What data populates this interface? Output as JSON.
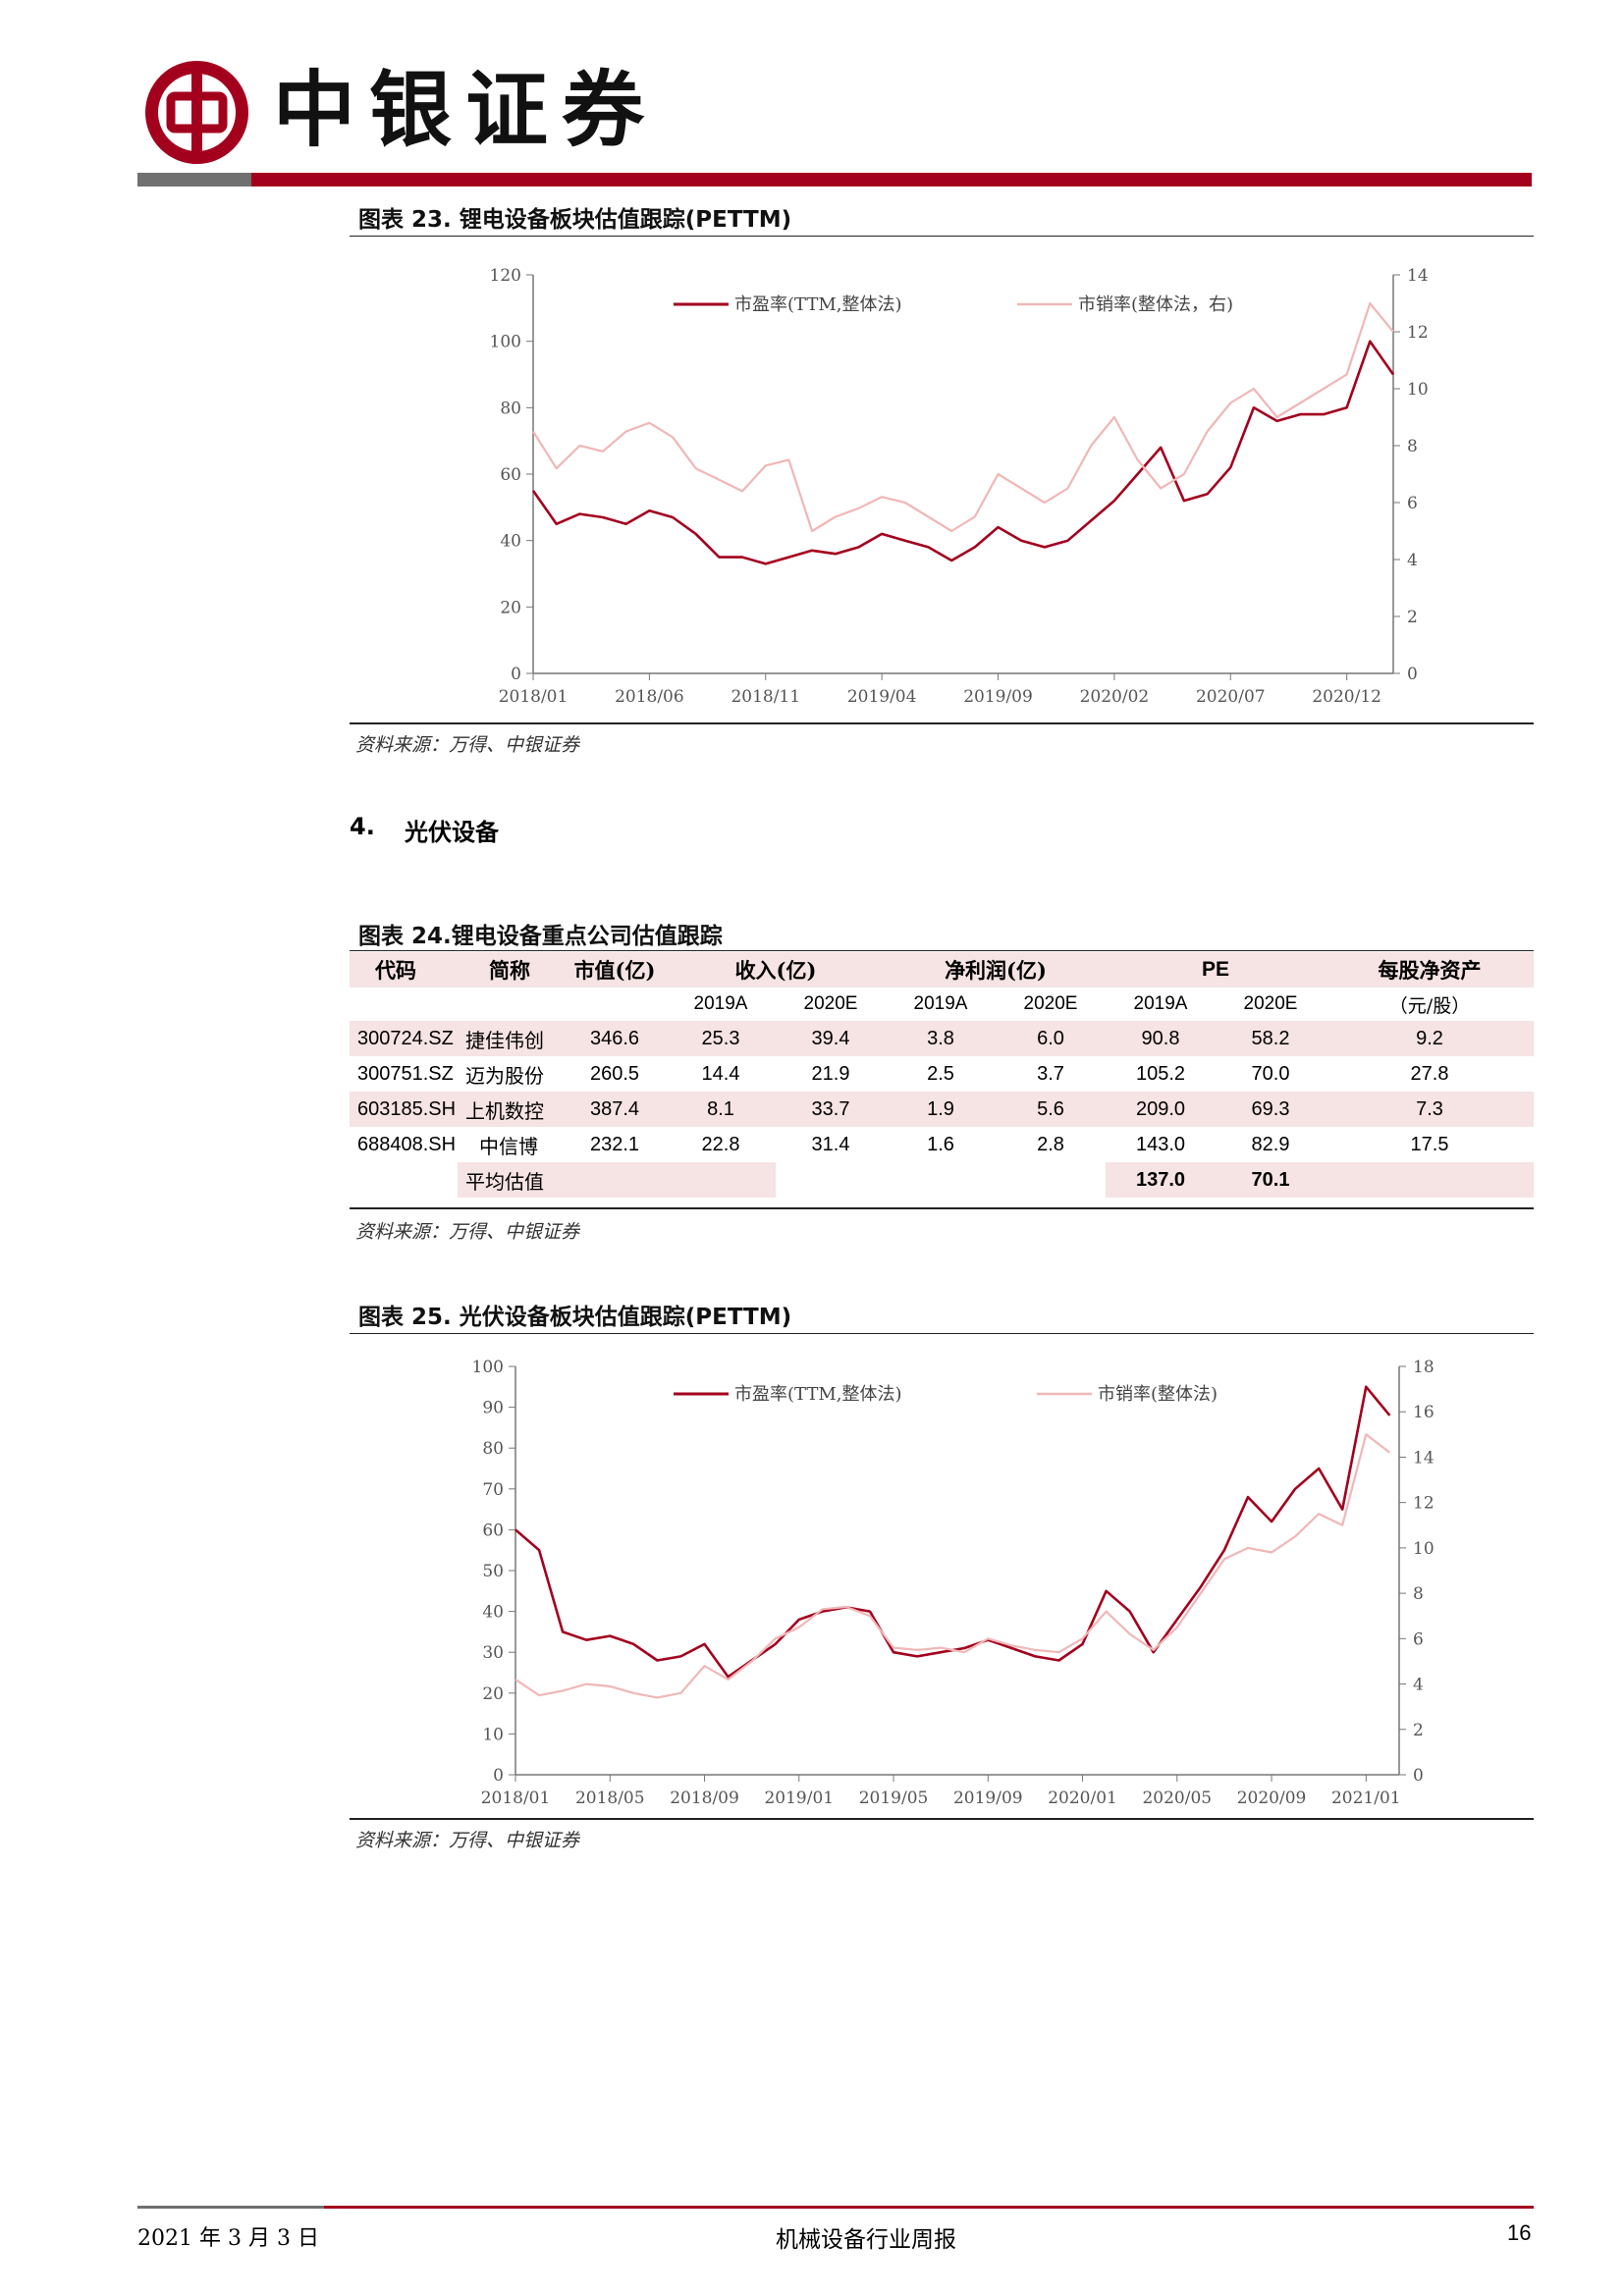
{
  "header": {
    "brand": "中银证券",
    "colors": {
      "brand_red": "#a3001e",
      "grey": "#707070"
    }
  },
  "figure23": {
    "title": "图表 23. 锂电设备板块估值跟踪(PETTM)",
    "source": "资料来源：万得、中银证券",
    "chart_data": {
      "type": "line",
      "x_ticks": [
        "2018/01",
        "2018/06",
        "2018/11",
        "2019/04",
        "2019/09",
        "2020/02",
        "2020/07",
        "2020/12"
      ],
      "y_left_ticks": [
        "0",
        "20",
        "40",
        "60",
        "80",
        "100",
        "120"
      ],
      "y_right_ticks": [
        "0",
        "2",
        "4",
        "6",
        "8",
        "10",
        "12",
        "14"
      ],
      "ylim_left": [
        0,
        120
      ],
      "ylim_right": [
        0,
        14
      ],
      "series": [
        {
          "name": "市盈率(TTM,整体法)",
          "axis": "left",
          "color": "#a3001e",
          "x": [
            "2018/01",
            "2018/02",
            "2018/03",
            "2018/04",
            "2018/05",
            "2018/06",
            "2018/07",
            "2018/08",
            "2018/09",
            "2018/10",
            "2018/11",
            "2018/12",
            "2019/01",
            "2019/02",
            "2019/03",
            "2019/04",
            "2019/05",
            "2019/06",
            "2019/07",
            "2019/08",
            "2019/09",
            "2019/10",
            "2019/11",
            "2019/12",
            "2020/01",
            "2020/02",
            "2020/03",
            "2020/04",
            "2020/05",
            "2020/06",
            "2020/07",
            "2020/08",
            "2020/09",
            "2020/10",
            "2020/11",
            "2020/12",
            "2021/01",
            "2021/02"
          ],
          "values": [
            55,
            45,
            48,
            47,
            45,
            49,
            47,
            42,
            35,
            35,
            33,
            35,
            37,
            36,
            38,
            42,
            40,
            38,
            34,
            38,
            44,
            40,
            38,
            40,
            46,
            52,
            60,
            68,
            52,
            54,
            62,
            80,
            76,
            78,
            78,
            80,
            100,
            90
          ]
        },
        {
          "name": "市销率(整体法，右)",
          "axis": "right",
          "color": "#f0b7b7",
          "x": [
            "2018/01",
            "2018/02",
            "2018/03",
            "2018/04",
            "2018/05",
            "2018/06",
            "2018/07",
            "2018/08",
            "2018/09",
            "2018/10",
            "2018/11",
            "2018/12",
            "2019/01",
            "2019/02",
            "2019/03",
            "2019/04",
            "2019/05",
            "2019/06",
            "2019/07",
            "2019/08",
            "2019/09",
            "2019/10",
            "2019/11",
            "2019/12",
            "2020/01",
            "2020/02",
            "2020/03",
            "2020/04",
            "2020/05",
            "2020/06",
            "2020/07",
            "2020/08",
            "2020/09",
            "2020/10",
            "2020/11",
            "2020/12",
            "2021/01",
            "2021/02"
          ],
          "values": [
            8.5,
            7.2,
            8.0,
            7.8,
            8.5,
            8.8,
            8.3,
            7.2,
            6.8,
            6.4,
            7.3,
            7.5,
            5.0,
            5.5,
            5.8,
            6.2,
            6.0,
            5.5,
            5.0,
            5.5,
            7.0,
            6.5,
            6.0,
            6.5,
            8.0,
            9.0,
            7.5,
            6.5,
            7.0,
            8.5,
            9.5,
            10.0,
            9.0,
            9.5,
            10.0,
            10.5,
            13.0,
            12.0
          ]
        }
      ]
    }
  },
  "section4": {
    "number": "4.",
    "title": "光伏设备"
  },
  "figure24": {
    "title": "图表 24.锂电设备重点公司估值跟踪",
    "source": "资料来源：万得、中银证券",
    "table": {
      "headers": {
        "code": "代码",
        "name": "简称",
        "mcap": "市值(亿)",
        "revenue": "收入(亿)",
        "profit": "净利润(亿)",
        "pe": "PE",
        "bvps": "每股净资产"
      },
      "sub_headers": {
        "rev_a": "2019A",
        "rev_e": "2020E",
        "np_a": "2019A",
        "np_e": "2020E",
        "pe_a": "2019A",
        "pe_e": "2020E",
        "bvps_unit": "（元/股）"
      },
      "rows": [
        {
          "code": "300724.SZ",
          "name": "捷佳伟创",
          "mcap": "346.6",
          "rev_a": "25.3",
          "rev_e": "39.4",
          "np_a": "3.8",
          "np_e": "6.0",
          "pe_a": "90.8",
          "pe_e": "58.2",
          "bvps": "9.2"
        },
        {
          "code": "300751.SZ",
          "name": "迈为股份",
          "mcap": "260.5",
          "rev_a": "14.4",
          "rev_e": "21.9",
          "np_a": "2.5",
          "np_e": "3.7",
          "pe_a": "105.2",
          "pe_e": "70.0",
          "bvps": "27.8"
        },
        {
          "code": "603185.SH",
          "name": "上机数控",
          "mcap": "387.4",
          "rev_a": "8.1",
          "rev_e": "33.7",
          "np_a": "1.9",
          "np_e": "5.6",
          "pe_a": "209.0",
          "pe_e": "69.3",
          "bvps": "7.3"
        },
        {
          "code": "688408.SH",
          "name": "中信博",
          "mcap": "232.1",
          "rev_a": "22.8",
          "rev_e": "31.4",
          "np_a": "1.6",
          "np_e": "2.8",
          "pe_a": "143.0",
          "pe_e": "82.9",
          "bvps": "17.5"
        }
      ],
      "average": {
        "name": "平均估值",
        "pe_a": "137.0",
        "pe_e": "70.1"
      },
      "tint_color": "#f6e3e3"
    }
  },
  "figure25": {
    "title": "图表 25. 光伏设备板块估值跟踪(PETTM)",
    "source": "资料来源：万得、中银证券",
    "chart_data": {
      "type": "line",
      "x_ticks": [
        "2018/01",
        "2018/05",
        "2018/09",
        "2019/01",
        "2019/05",
        "2019/09",
        "2020/01",
        "2020/05",
        "2020/09",
        "2021/01"
      ],
      "y_left_ticks": [
        "0",
        "10",
        "20",
        "30",
        "40",
        "50",
        "60",
        "70",
        "80",
        "90",
        "100"
      ],
      "y_right_ticks": [
        "0",
        "2",
        "4",
        "6",
        "8",
        "10",
        "12",
        "14",
        "16",
        "18"
      ],
      "ylim_left": [
        0,
        100
      ],
      "ylim_right": [
        0,
        18
      ],
      "series": [
        {
          "name": "市盈率(TTM,整体法)",
          "axis": "left",
          "color": "#a3001e",
          "x": [
            "2018/01",
            "2018/02",
            "2018/03",
            "2018/04",
            "2018/05",
            "2018/06",
            "2018/07",
            "2018/08",
            "2018/09",
            "2018/10",
            "2018/11",
            "2018/12",
            "2019/01",
            "2019/02",
            "2019/03",
            "2019/04",
            "2019/05",
            "2019/06",
            "2019/07",
            "2019/08",
            "2019/09",
            "2019/10",
            "2019/11",
            "2019/12",
            "2020/01",
            "2020/02",
            "2020/03",
            "2020/04",
            "2020/05",
            "2020/06",
            "2020/07",
            "2020/08",
            "2020/09",
            "2020/10",
            "2020/11",
            "2020/12",
            "2021/01",
            "2021/02"
          ],
          "values": [
            60,
            55,
            35,
            33,
            34,
            32,
            28,
            29,
            32,
            24,
            28,
            32,
            38,
            40,
            41,
            40,
            30,
            29,
            30,
            31,
            33,
            31,
            29,
            28,
            32,
            45,
            40,
            30,
            38,
            46,
            55,
            68,
            62,
            70,
            75,
            65,
            95,
            88
          ]
        },
        {
          "name": "市销率(整体法)",
          "axis": "right",
          "color": "#f0b7b7",
          "x": [
            "2018/01",
            "2018/02",
            "2018/03",
            "2018/04",
            "2018/05",
            "2018/06",
            "2018/07",
            "2018/08",
            "2018/09",
            "2018/10",
            "2018/11",
            "2018/12",
            "2019/01",
            "2019/02",
            "2019/03",
            "2019/04",
            "2019/05",
            "2019/06",
            "2019/07",
            "2019/08",
            "2019/09",
            "2019/10",
            "2019/11",
            "2019/12",
            "2020/01",
            "2020/02",
            "2020/03",
            "2020/04",
            "2020/05",
            "2020/06",
            "2020/07",
            "2020/08",
            "2020/09",
            "2020/10",
            "2020/11",
            "2020/12",
            "2021/01",
            "2021/02"
          ],
          "values": [
            4.2,
            3.5,
            3.7,
            4.0,
            3.9,
            3.6,
            3.4,
            3.6,
            4.8,
            4.2,
            5.0,
            6.0,
            6.5,
            7.3,
            7.4,
            7.0,
            5.6,
            5.5,
            5.6,
            5.4,
            6.0,
            5.7,
            5.5,
            5.4,
            6.0,
            7.2,
            6.2,
            5.5,
            6.5,
            8.0,
            9.5,
            10.0,
            9.8,
            10.5,
            11.5,
            11.0,
            15.0,
            14.2
          ]
        }
      ]
    }
  },
  "footer": {
    "date": "2021 年 3 月 3 日",
    "title": "机械设备行业周报",
    "page": "16"
  }
}
